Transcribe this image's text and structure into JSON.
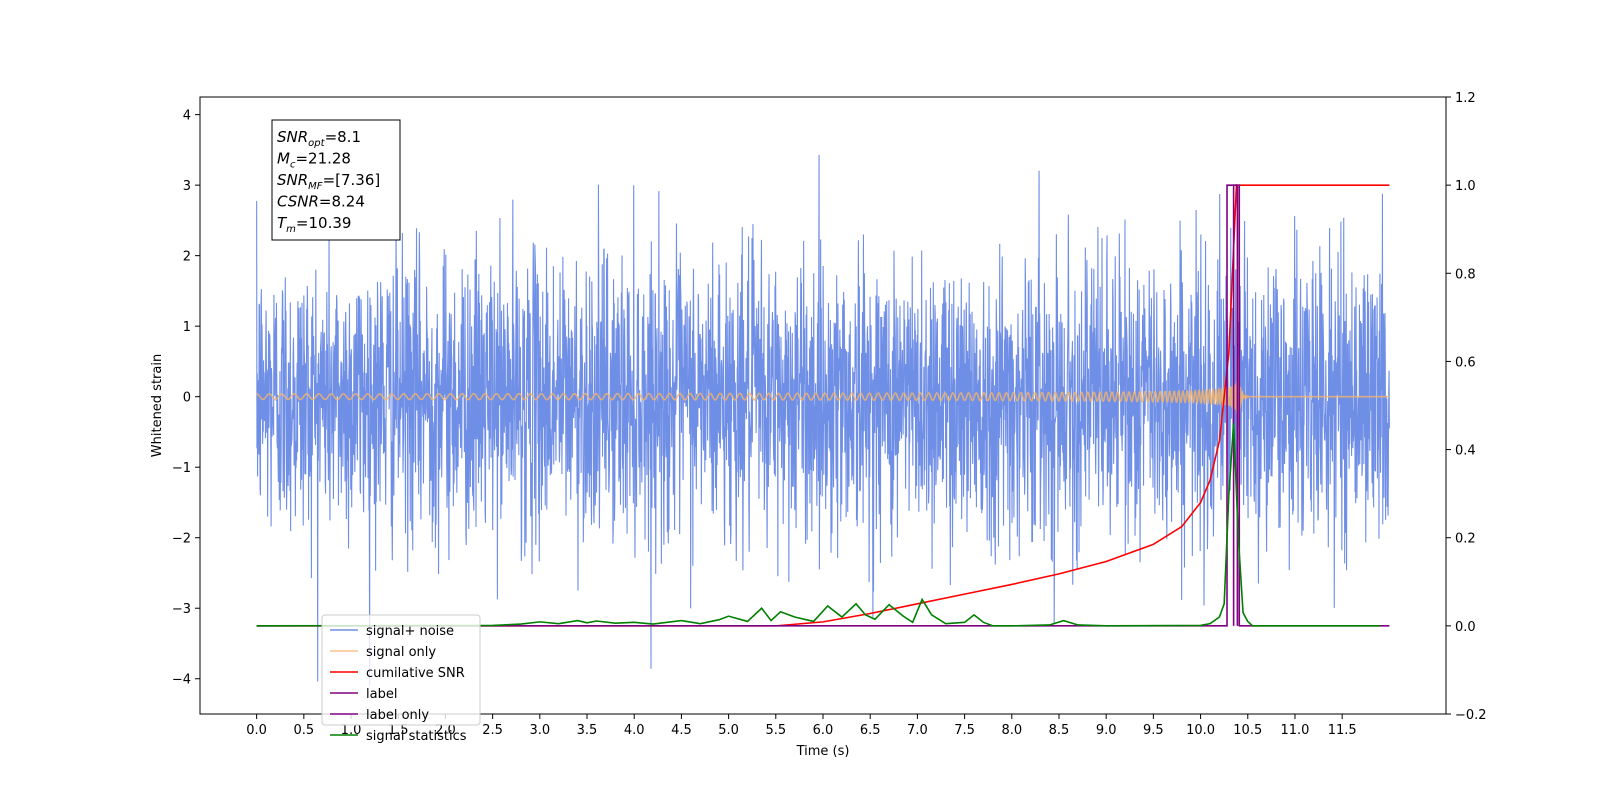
{
  "chart_data": {
    "type": "line",
    "title": "",
    "xlabel": "Time (s)",
    "ylabel": "Whitened strain",
    "y2label": "",
    "xlim": [
      -0.6,
      12.6
    ],
    "ylim": [
      -4.5,
      4.25
    ],
    "y2lim": [
      -0.2,
      1.2
    ],
    "xticks": [
      0.0,
      0.5,
      1.0,
      1.5,
      2.0,
      2.5,
      3.0,
      3.5,
      4.0,
      4.5,
      5.0,
      5.5,
      6.0,
      6.5,
      7.0,
      7.5,
      8.0,
      8.5,
      9.0,
      9.5,
      10.0,
      10.5,
      11.0,
      11.5
    ],
    "xtick_labels": [
      "0.0",
      "0.5",
      "1.0",
      "1.5",
      "2.0",
      "2.5",
      "3.0",
      "3.5",
      "4.0",
      "4.5",
      "5.0",
      "5.5",
      "6.0",
      "6.5",
      "7.0",
      "7.5",
      "8.0",
      "8.5",
      "9.0",
      "9.5",
      "10.0",
      "10.5",
      "11.0",
      "11.5"
    ],
    "yticks": [
      -4,
      -3,
      -2,
      -1,
      0,
      1,
      2,
      3,
      4
    ],
    "ytick_labels": [
      "−4",
      "−3",
      "−2",
      "−1",
      "0",
      "1",
      "2",
      "3",
      "4"
    ],
    "y2ticks": [
      -0.2,
      0.0,
      0.2,
      0.4,
      0.6,
      0.8,
      1.0,
      1.2
    ],
    "y2tick_labels": [
      "−0.2",
      "0.0",
      "0.2",
      "0.4",
      "0.6",
      "0.8",
      "1.0",
      "1.2"
    ],
    "grid": false,
    "legend_position": "bottom-left",
    "annotation": {
      "lines": [
        {
          "base": "SNR",
          "sub": "opt",
          "rest": "=8.1"
        },
        {
          "base": "M",
          "sub": "c",
          "rest": "=21.28"
        },
        {
          "base": "SNR",
          "sub": "MF",
          "rest": "=[7.36]"
        },
        {
          "base": "CSNR",
          "sub": "",
          "rest": "=8.24"
        },
        {
          "base": "T",
          "sub": "m",
          "rest": "=10.39"
        }
      ]
    },
    "series": [
      {
        "name": "signal+ noise",
        "color": "#6f8ee6",
        "axis": "left",
        "kind": "noise",
        "x_range": [
          0.0,
          12.0
        ],
        "amplitude_std": 1.0,
        "y_min": -4.1,
        "y_max": 3.87
      },
      {
        "name": "signal only",
        "color": "#f5b469",
        "axis": "left",
        "kind": "chirp",
        "x_range": [
          0.0,
          12.0
        ],
        "merger_time": 10.39,
        "peak_amplitude": 0.75
      },
      {
        "name": "cumilative SNR",
        "color": "#ff0000",
        "axis": "right",
        "x": [
          0.0,
          5.5,
          6.0,
          6.5,
          7.0,
          7.5,
          8.0,
          8.5,
          9.0,
          9.5,
          9.8,
          10.0,
          10.1,
          10.2,
          10.3,
          10.38,
          10.42,
          12.0
        ],
        "y": [
          0.0,
          0.0,
          0.009,
          0.028,
          0.05,
          0.072,
          0.094,
          0.118,
          0.146,
          0.185,
          0.225,
          0.28,
          0.33,
          0.42,
          0.62,
          1.0,
          1.0,
          1.0
        ]
      },
      {
        "name": "label",
        "color": "#800080",
        "axis": "right",
        "x": [
          0.0,
          10.28,
          10.28,
          10.41,
          10.41,
          12.0
        ],
        "y": [
          0.0,
          0.0,
          1.0,
          1.0,
          0.0,
          0.0
        ]
      },
      {
        "name": "label only",
        "color": "#800080",
        "axis": "right",
        "x": [
          10.35,
          10.35,
          10.39,
          10.39
        ],
        "y": [
          0.0,
          1.0,
          1.0,
          0.0
        ]
      },
      {
        "name": "signal statistics",
        "color": "#008000",
        "axis": "right",
        "x": [
          0.0,
          2.5,
          2.8,
          3.0,
          3.2,
          3.4,
          3.5,
          3.6,
          3.8,
          4.0,
          4.2,
          4.5,
          4.7,
          4.9,
          5.0,
          5.2,
          5.35,
          5.45,
          5.55,
          5.7,
          5.9,
          6.05,
          6.2,
          6.35,
          6.45,
          6.55,
          6.7,
          6.85,
          6.95,
          7.05,
          7.15,
          7.3,
          7.5,
          7.6,
          7.7,
          7.8,
          8.0,
          8.4,
          8.55,
          8.7,
          9.0,
          10.0,
          10.1,
          10.2,
          10.25,
          10.3,
          10.35,
          10.4,
          10.45,
          10.5,
          10.55,
          11.9
        ],
        "y": [
          0.0,
          0.001,
          0.004,
          0.009,
          0.005,
          0.012,
          0.007,
          0.011,
          0.006,
          0.008,
          0.004,
          0.012,
          0.005,
          0.014,
          0.022,
          0.01,
          0.04,
          0.012,
          0.032,
          0.02,
          0.01,
          0.045,
          0.02,
          0.05,
          0.025,
          0.015,
          0.048,
          0.022,
          0.008,
          0.06,
          0.025,
          0.005,
          0.008,
          0.025,
          0.008,
          0.0,
          0.0,
          0.002,
          0.012,
          0.002,
          0.0,
          0.001,
          0.005,
          0.02,
          0.05,
          0.3,
          0.46,
          0.2,
          0.03,
          0.01,
          0.0,
          0.0
        ]
      }
    ]
  }
}
